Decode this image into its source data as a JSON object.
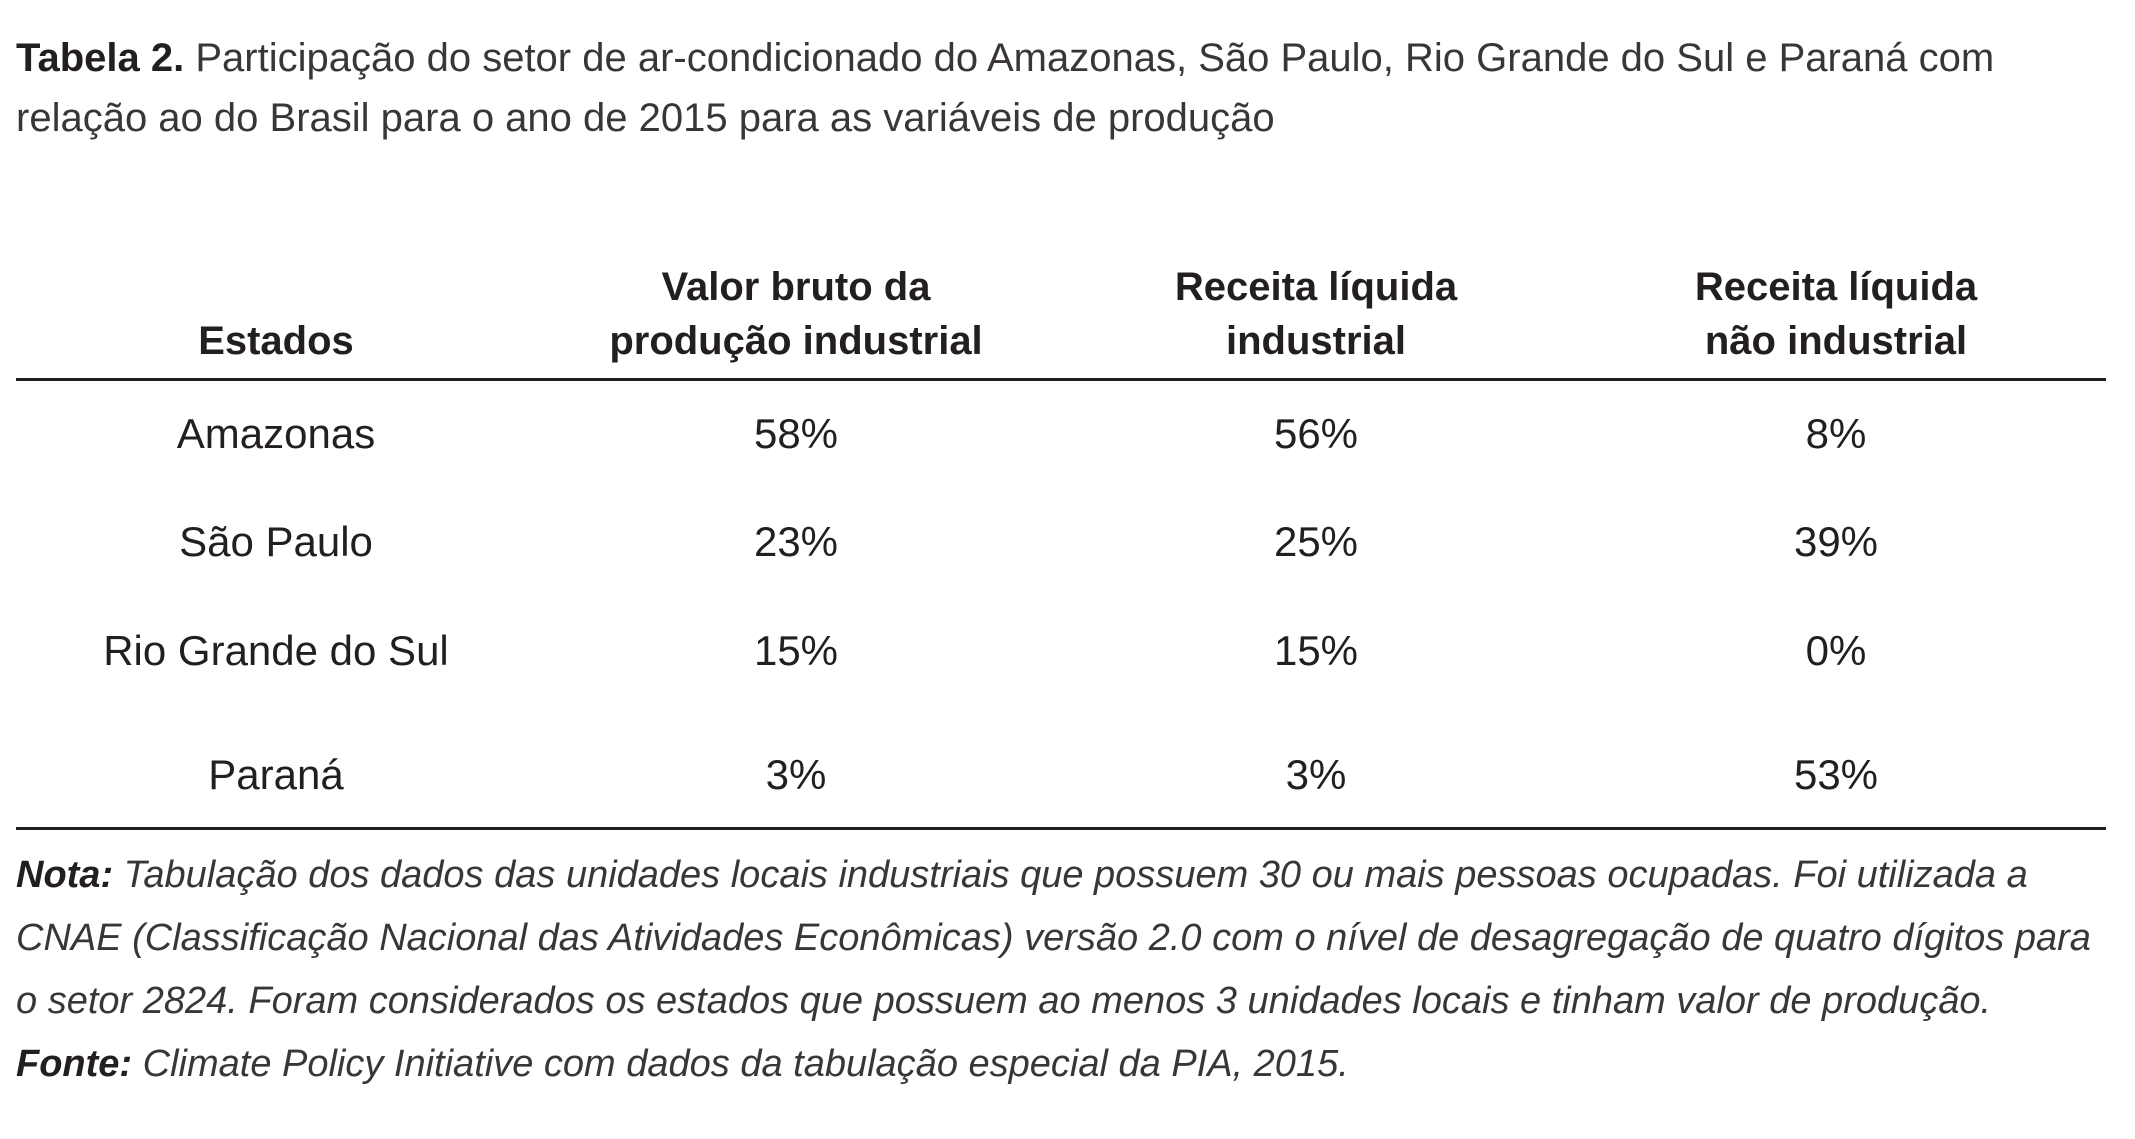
{
  "caption": {
    "label": "Tabela 2.",
    "text": "Participação do setor de ar-condicionado do Amazonas, São Paulo, Rio Grande do Sul e Paraná com relação ao do Brasil para o ano de 2015 para as variáveis de produção"
  },
  "table": {
    "headers": [
      {
        "line1": "",
        "line2": "Estados"
      },
      {
        "line1": "Valor bruto da",
        "line2": "produção industrial"
      },
      {
        "line1": "Receita líquida",
        "line2": "industrial"
      },
      {
        "line1": "Receita líquida",
        "line2": "não industrial"
      }
    ],
    "rows": [
      [
        "Amazonas",
        "58%",
        "56%",
        "8%"
      ],
      [
        "São Paulo",
        "23%",
        "25%",
        "39%"
      ],
      [
        "Rio Grande do Sul",
        "15%",
        "15%",
        "0%"
      ],
      [
        "Paraná",
        "3%",
        "3%",
        "53%"
      ]
    ]
  },
  "note": {
    "label": "Nota:",
    "text": "Tabulação dos dados das unidades locais industriais que possuem 30 ou mais pessoas ocupadas. Foi utilizada a CNAE (Classificação Nacional das Atividades Econômicas) versão 2.0 com o nível de desagregação de quatro dígitos para o setor 2824. Foram considerados os estados que possuem ao menos 3 unidades locais e tinham valor de produção."
  },
  "source": {
    "label": "Fonte:",
    "text": "Climate Policy Initiative com dados da tabulação especial da PIA, 2015."
  }
}
